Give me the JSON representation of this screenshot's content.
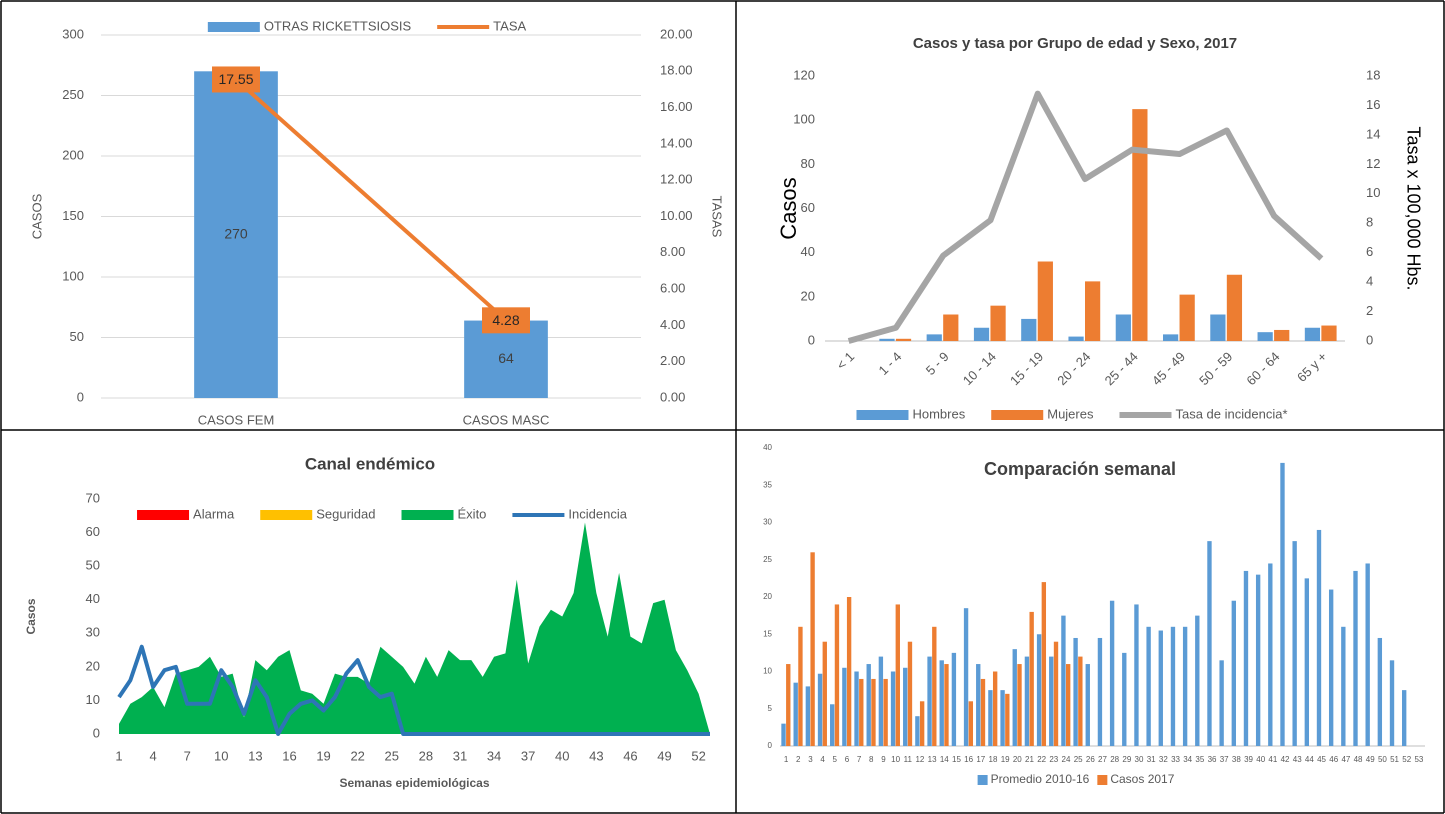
{
  "chart_data": [
    {
      "type": "bar",
      "categories": [
        "CASOS FEM",
        "CASOS MASC"
      ],
      "series": [
        {
          "name": "OTRAS RICKETTSIOSIS",
          "type": "bar",
          "color": "#5b9bd5",
          "values": [
            270,
            64
          ],
          "data_labels": true
        },
        {
          "name": "TASA",
          "type": "line",
          "axis": "y2",
          "color": "#ed7d31",
          "values": [
            17.55,
            4.28
          ],
          "data_labels": true
        }
      ],
      "ylabel": "CASOS",
      "y2label": "TASAS",
      "ylim": [
        0,
        300
      ],
      "yticks": [
        0,
        50,
        100,
        150,
        200,
        250,
        300
      ],
      "y2lim": [
        0,
        20
      ],
      "y2ticks": [
        {
          "value": 0,
          "label": "0.00"
        },
        {
          "value": 2,
          "label": "2.00"
        },
        {
          "value": 4,
          "label": "4.00"
        },
        {
          "value": 6,
          "label": "6.00"
        },
        {
          "value": 8,
          "label": "8.00"
        },
        {
          "value": 10,
          "label": "10.00"
        },
        {
          "value": 12,
          "label": "12.00"
        },
        {
          "value": 14,
          "label": "14.00"
        },
        {
          "value": 16,
          "label": "16.00"
        },
        {
          "value": 18,
          "label": "18.00"
        },
        {
          "value": 20,
          "label": "20.00"
        }
      ],
      "grid": true,
      "legend": "top"
    },
    {
      "type": "bar",
      "title": "Casos y tasa por Grupo de edad y Sexo, 2017",
      "categories": [
        "< 1",
        "1 - 4",
        "5 - 9",
        "10 - 14",
        "15 - 19",
        "20 - 24",
        "25 - 44",
        "45 - 49",
        "50 - 59",
        "60 - 64",
        "65 y +"
      ],
      "series": [
        {
          "name": "Hombres",
          "type": "bar",
          "color": "#5b9bd5",
          "values": [
            0,
            1,
            3,
            6,
            10,
            2,
            12,
            3,
            12,
            4,
            6
          ]
        },
        {
          "name": "Mujeres",
          "type": "bar",
          "color": "#ed7d31",
          "values": [
            0,
            1,
            12,
            16,
            36,
            27,
            105,
            21,
            30,
            5,
            7
          ]
        },
        {
          "name": "Tasa de incidencia*",
          "type": "line",
          "axis": "y2",
          "color": "#a5a5a5",
          "values": [
            0,
            0.9,
            5.8,
            8.2,
            16.8,
            11.0,
            13.0,
            12.7,
            14.3,
            8.5,
            5.6
          ]
        }
      ],
      "ylabel": "Casos",
      "y2label": "Tasa x 100,000 Hbs.",
      "ylim": [
        0,
        120
      ],
      "yticks": [
        0,
        20,
        40,
        60,
        80,
        100,
        120
      ],
      "y2lim": [
        0,
        18
      ],
      "y2ticks": [
        0,
        2,
        4,
        6,
        8,
        10,
        12,
        14,
        16,
        18
      ],
      "grid": false,
      "legend": "bottom"
    },
    {
      "type": "area",
      "title": "Canal endémico",
      "x": [
        1,
        2,
        3,
        4,
        5,
        6,
        7,
        8,
        9,
        10,
        11,
        12,
        13,
        14,
        15,
        16,
        17,
        18,
        19,
        20,
        21,
        22,
        23,
        24,
        25,
        26,
        27,
        28,
        29,
        30,
        31,
        32,
        33,
        34,
        35,
        36,
        37,
        38,
        39,
        40,
        41,
        42,
        43,
        44,
        45,
        46,
        47,
        48,
        49,
        50,
        51,
        52,
        53
      ],
      "series": [
        {
          "name": "Alarma",
          "type": "area",
          "color": "#ff0000",
          "values": [
            0,
            0,
            0,
            0,
            0,
            0,
            0,
            0,
            0,
            0,
            0,
            0,
            0,
            0,
            0,
            0,
            0,
            0,
            0,
            0,
            0,
            0,
            0,
            0,
            0,
            0,
            0,
            0,
            0,
            0,
            0,
            0,
            0,
            0,
            0,
            0,
            0,
            0,
            0,
            0,
            0,
            0,
            0,
            0,
            0,
            0,
            0,
            0,
            0,
            0,
            0,
            0,
            0
          ]
        },
        {
          "name": "Seguridad",
          "type": "area",
          "color": "#ffc000",
          "values": [
            0,
            0,
            0,
            0,
            0,
            0,
            0,
            0,
            0,
            0,
            0,
            0,
            0,
            0,
            0,
            0,
            0,
            0,
            0,
            0,
            0,
            0,
            0,
            0,
            0,
            0,
            0,
            0,
            0,
            0,
            0,
            0,
            0,
            0,
            0,
            0,
            0,
            0,
            0,
            0,
            0,
            0,
            0,
            0,
            0,
            0,
            0,
            0,
            0,
            0,
            0,
            0,
            0
          ]
        },
        {
          "name": "Éxito",
          "type": "area",
          "color": "#00b050",
          "values": [
            3,
            9,
            11,
            14,
            8,
            18,
            19,
            20,
            23,
            17,
            18,
            5,
            22,
            19,
            23,
            25,
            13,
            12,
            9,
            18,
            17,
            17,
            15,
            26,
            23,
            20,
            15,
            23,
            17,
            25,
            22,
            22,
            17,
            23,
            24,
            46,
            21,
            32,
            37,
            35,
            42,
            63,
            42,
            29,
            48,
            29,
            27,
            39,
            40,
            25,
            19,
            12,
            0
          ]
        },
        {
          "name": "Incidencia",
          "type": "line",
          "color": "#2e75b6",
          "values": [
            11,
            16,
            26,
            14,
            19,
            20,
            9,
            9,
            9,
            19,
            14,
            6,
            16,
            11,
            0,
            6,
            9,
            10,
            7,
            11,
            18,
            22,
            14,
            11,
            12,
            0,
            0,
            0,
            0,
            0,
            0,
            0,
            0,
            0,
            0,
            0,
            0,
            0,
            0,
            0,
            0,
            0,
            0,
            0,
            0,
            0,
            0,
            0,
            0,
            0,
            0,
            0,
            0
          ]
        }
      ],
      "ylabel": "Casos",
      "xlabel": "Semanas epidemiológicas",
      "xlim": [
        1,
        53
      ],
      "xticks": [
        1,
        4,
        7,
        10,
        13,
        16,
        19,
        22,
        25,
        28,
        31,
        34,
        37,
        40,
        43,
        46,
        49,
        52
      ],
      "ylim": [
        0,
        70
      ],
      "yticks": [
        0,
        10,
        20,
        30,
        40,
        50,
        60,
        70
      ],
      "grid": false,
      "legend": "top"
    },
    {
      "type": "bar",
      "title": "Comparación semanal",
      "categories": [
        1,
        2,
        3,
        4,
        5,
        6,
        7,
        8,
        9,
        10,
        11,
        12,
        13,
        14,
        15,
        16,
        17,
        18,
        19,
        20,
        21,
        22,
        23,
        24,
        25,
        26,
        27,
        28,
        29,
        30,
        31,
        32,
        33,
        34,
        35,
        36,
        37,
        38,
        39,
        40,
        41,
        42,
        43,
        44,
        45,
        46,
        47,
        48,
        49,
        50,
        51,
        52,
        53
      ],
      "series": [
        {
          "name": "Promedio 2010-16",
          "type": "bar",
          "color": "#5b9bd5",
          "values": [
            3,
            8.5,
            8,
            9.7,
            5.6,
            10.5,
            10,
            11,
            12,
            10,
            10.5,
            4,
            12,
            11.5,
            12.5,
            18.5,
            11,
            7.5,
            7.5,
            13,
            12,
            15,
            12,
            17.5,
            14.5,
            11,
            14.5,
            19.5,
            12.5,
            19,
            16,
            15.5,
            16,
            16,
            17.5,
            27.5,
            11.5,
            19.5,
            23.5,
            23,
            24.5,
            38,
            27.5,
            22.5,
            29,
            21,
            16,
            23.5,
            24.5,
            14.5,
            11.5,
            7.5,
            null
          ]
        },
        {
          "name": "Casos 2017",
          "type": "bar",
          "color": "#ed7d31",
          "values": [
            11,
            16,
            26,
            14,
            19,
            20,
            9,
            9,
            9,
            19,
            14,
            6,
            16,
            11,
            0,
            6,
            9,
            10,
            7,
            11,
            18,
            22,
            14,
            11,
            12,
            null,
            null,
            null,
            null,
            null,
            null,
            null,
            null,
            null,
            null,
            null,
            null,
            null,
            null,
            null,
            null,
            null,
            null,
            null,
            null,
            null,
            null,
            null,
            null,
            null,
            null,
            null,
            null
          ]
        }
      ],
      "ylim": [
        0,
        40
      ],
      "yticks": [
        0,
        5,
        10,
        15,
        20,
        25,
        30,
        35,
        40
      ],
      "grid": false,
      "legend": "bottom"
    }
  ]
}
